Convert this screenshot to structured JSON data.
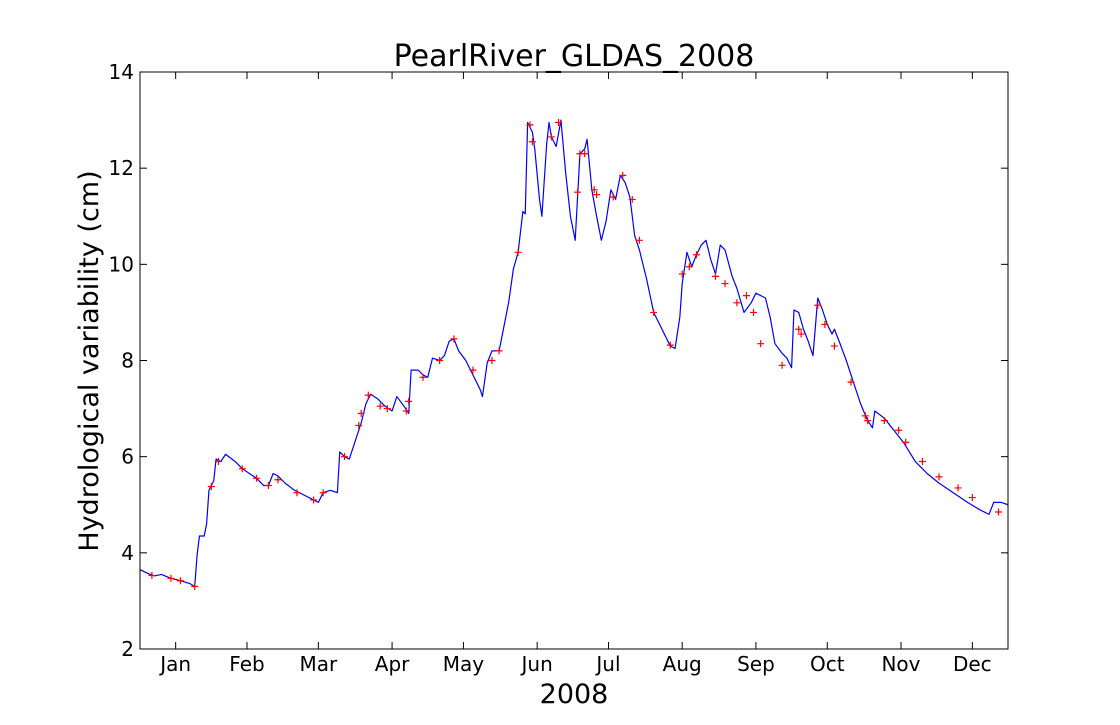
{
  "chart_data": {
    "type": "line",
    "title": "PearlRiver_GLDAS_2008",
    "xlabel": "2008",
    "ylabel": "Hydrological variability (cm)",
    "ylim": [
      2,
      14
    ],
    "xlim": [
      "2008-01-01",
      "2008-12-31"
    ],
    "yticks": [
      2,
      4,
      6,
      8,
      10,
      12,
      14
    ],
    "xtick_labels": [
      "Jan",
      "Feb",
      "Mar",
      "Apr",
      "May",
      "Jun",
      "Jul",
      "Aug",
      "Sep",
      "Oct",
      "Nov",
      "Dec"
    ],
    "xtick_dates": [
      "2008-01-16",
      "2008-02-15",
      "2008-03-16",
      "2008-04-16",
      "2008-05-16",
      "2008-06-16",
      "2008-07-16",
      "2008-08-16",
      "2008-09-16",
      "2008-10-16",
      "2008-11-16",
      "2008-12-16"
    ],
    "grid": false,
    "legend": false,
    "series": [
      {
        "color": "#0000ff",
        "style": "line",
        "points": [
          [
            "2008-01-01",
            3.65
          ],
          [
            "2008-01-04",
            3.58
          ],
          [
            "2008-01-07",
            3.52
          ],
          [
            "2008-01-10",
            3.55
          ],
          [
            "2008-01-14",
            3.47
          ],
          [
            "2008-01-18",
            3.42
          ],
          [
            "2008-01-22",
            3.36
          ],
          [
            "2008-01-24",
            3.3
          ],
          [
            "2008-01-25",
            3.95
          ],
          [
            "2008-01-26",
            4.35
          ],
          [
            "2008-01-28",
            4.35
          ],
          [
            "2008-01-29",
            4.6
          ],
          [
            "2008-01-30",
            5.3
          ],
          [
            "2008-02-01",
            5.5
          ],
          [
            "2008-02-02",
            5.95
          ],
          [
            "2008-02-04",
            5.9
          ],
          [
            "2008-02-06",
            6.05
          ],
          [
            "2008-02-10",
            5.9
          ],
          [
            "2008-02-13",
            5.75
          ],
          [
            "2008-02-16",
            5.65
          ],
          [
            "2008-02-19",
            5.55
          ],
          [
            "2008-02-22",
            5.4
          ],
          [
            "2008-02-24",
            5.4
          ],
          [
            "2008-02-26",
            5.65
          ],
          [
            "2008-02-28",
            5.6
          ],
          [
            "2008-03-02",
            5.45
          ],
          [
            "2008-03-06",
            5.3
          ],
          [
            "2008-03-10",
            5.2
          ],
          [
            "2008-03-14",
            5.1
          ],
          [
            "2008-03-16",
            5.05
          ],
          [
            "2008-03-18",
            5.25
          ],
          [
            "2008-03-21",
            5.3
          ],
          [
            "2008-03-24",
            5.25
          ],
          [
            "2008-03-25",
            6.1
          ],
          [
            "2008-03-27",
            6.0
          ],
          [
            "2008-03-29",
            5.95
          ],
          [
            "2008-03-31",
            6.25
          ],
          [
            "2008-04-03",
            6.7
          ],
          [
            "2008-04-05",
            7.1
          ],
          [
            "2008-04-07",
            7.3
          ],
          [
            "2008-04-10",
            7.2
          ],
          [
            "2008-04-13",
            7.05
          ],
          [
            "2008-04-16",
            6.95
          ],
          [
            "2008-04-18",
            7.25
          ],
          [
            "2008-04-21",
            7.05
          ],
          [
            "2008-04-23",
            6.9
          ],
          [
            "2008-04-24",
            7.8
          ],
          [
            "2008-04-27",
            7.8
          ],
          [
            "2008-04-29",
            7.7
          ],
          [
            "2008-05-01",
            7.65
          ],
          [
            "2008-05-03",
            8.05
          ],
          [
            "2008-05-06",
            8.0
          ],
          [
            "2008-05-08",
            8.1
          ],
          [
            "2008-05-10",
            8.4
          ],
          [
            "2008-05-12",
            8.45
          ],
          [
            "2008-05-14",
            8.2
          ],
          [
            "2008-05-17",
            8.0
          ],
          [
            "2008-05-20",
            7.7
          ],
          [
            "2008-05-23",
            7.4
          ],
          [
            "2008-05-24",
            7.25
          ],
          [
            "2008-05-26",
            7.95
          ],
          [
            "2008-05-28",
            8.2
          ],
          [
            "2008-05-31",
            8.2
          ],
          [
            "2008-06-02",
            8.7
          ],
          [
            "2008-06-04",
            9.2
          ],
          [
            "2008-06-06",
            9.9
          ],
          [
            "2008-06-08",
            10.25
          ],
          [
            "2008-06-10",
            11.1
          ],
          [
            "2008-06-11",
            11.05
          ],
          [
            "2008-06-12",
            12.95
          ],
          [
            "2008-06-14",
            12.75
          ],
          [
            "2008-06-15",
            12.4
          ],
          [
            "2008-06-17",
            11.35
          ],
          [
            "2008-06-18",
            11.0
          ],
          [
            "2008-06-20",
            12.5
          ],
          [
            "2008-06-21",
            12.95
          ],
          [
            "2008-06-22",
            12.65
          ],
          [
            "2008-06-24",
            12.45
          ],
          [
            "2008-06-26",
            13.0
          ],
          [
            "2008-06-28",
            11.9
          ],
          [
            "2008-06-30",
            11.0
          ],
          [
            "2008-07-02",
            10.5
          ],
          [
            "2008-07-04",
            12.3
          ],
          [
            "2008-07-06",
            12.4
          ],
          [
            "2008-07-07",
            12.6
          ],
          [
            "2008-07-09",
            11.55
          ],
          [
            "2008-07-11",
            11.0
          ],
          [
            "2008-07-13",
            10.5
          ],
          [
            "2008-07-15",
            10.9
          ],
          [
            "2008-07-17",
            11.55
          ],
          [
            "2008-07-19",
            11.35
          ],
          [
            "2008-07-21",
            11.85
          ],
          [
            "2008-07-23",
            11.7
          ],
          [
            "2008-07-25",
            11.4
          ],
          [
            "2008-07-27",
            10.6
          ],
          [
            "2008-07-29",
            10.3
          ],
          [
            "2008-08-01",
            9.7
          ],
          [
            "2008-08-04",
            9.0
          ],
          [
            "2008-08-08",
            8.6
          ],
          [
            "2008-08-11",
            8.3
          ],
          [
            "2008-08-13",
            8.25
          ],
          [
            "2008-08-15",
            8.9
          ],
          [
            "2008-08-16",
            9.6
          ],
          [
            "2008-08-18",
            10.25
          ],
          [
            "2008-08-20",
            9.95
          ],
          [
            "2008-08-22",
            10.2
          ],
          [
            "2008-08-24",
            10.4
          ],
          [
            "2008-08-26",
            10.5
          ],
          [
            "2008-08-28",
            10.1
          ],
          [
            "2008-08-30",
            9.8
          ],
          [
            "2008-09-01",
            10.4
          ],
          [
            "2008-09-03",
            10.3
          ],
          [
            "2008-09-06",
            9.75
          ],
          [
            "2008-09-08",
            9.5
          ],
          [
            "2008-09-11",
            9.0
          ],
          [
            "2008-09-14",
            9.2
          ],
          [
            "2008-09-16",
            9.4
          ],
          [
            "2008-09-18",
            9.35
          ],
          [
            "2008-09-20",
            9.3
          ],
          [
            "2008-09-22",
            8.9
          ],
          [
            "2008-09-24",
            8.35
          ],
          [
            "2008-09-27",
            8.15
          ],
          [
            "2008-09-29",
            8.05
          ],
          [
            "2008-10-01",
            7.85
          ],
          [
            "2008-10-02",
            9.05
          ],
          [
            "2008-10-04",
            9.0
          ],
          [
            "2008-10-06",
            8.65
          ],
          [
            "2008-10-08",
            8.4
          ],
          [
            "2008-10-10",
            8.1
          ],
          [
            "2008-10-12",
            9.3
          ],
          [
            "2008-10-14",
            9.05
          ],
          [
            "2008-10-16",
            8.75
          ],
          [
            "2008-10-18",
            8.55
          ],
          [
            "2008-10-19",
            8.65
          ],
          [
            "2008-10-21",
            8.4
          ],
          [
            "2008-10-24",
            8.0
          ],
          [
            "2008-10-27",
            7.55
          ],
          [
            "2008-10-30",
            7.1
          ],
          [
            "2008-11-02",
            6.75
          ],
          [
            "2008-11-04",
            6.6
          ],
          [
            "2008-11-05",
            6.95
          ],
          [
            "2008-11-09",
            6.8
          ],
          [
            "2008-11-13",
            6.55
          ],
          [
            "2008-11-17",
            6.3
          ],
          [
            "2008-11-22",
            5.9
          ],
          [
            "2008-11-27",
            5.65
          ],
          [
            "2008-12-02",
            5.45
          ],
          [
            "2008-12-08",
            5.25
          ],
          [
            "2008-12-14",
            5.05
          ],
          [
            "2008-12-19",
            4.9
          ],
          [
            "2008-12-23",
            4.8
          ],
          [
            "2008-12-25",
            5.05
          ],
          [
            "2008-12-28",
            5.05
          ],
          [
            "2008-12-31",
            5.0
          ]
        ]
      },
      {
        "color": "#ff0000",
        "style": "plus-markers",
        "points": [
          [
            "2008-01-06",
            3.53
          ],
          [
            "2008-01-14",
            3.47
          ],
          [
            "2008-01-18",
            3.42
          ],
          [
            "2008-01-24",
            3.3
          ],
          [
            "2008-01-31",
            5.38
          ],
          [
            "2008-02-03",
            5.9
          ],
          [
            "2008-02-13",
            5.75
          ],
          [
            "2008-02-19",
            5.55
          ],
          [
            "2008-02-24",
            5.4
          ],
          [
            "2008-02-28",
            5.52
          ],
          [
            "2008-03-07",
            5.25
          ],
          [
            "2008-03-14",
            5.1
          ],
          [
            "2008-03-18",
            5.25
          ],
          [
            "2008-03-27",
            6.0
          ],
          [
            "2008-04-02",
            6.65
          ],
          [
            "2008-04-03",
            6.9
          ],
          [
            "2008-04-06",
            7.28
          ],
          [
            "2008-04-11",
            7.05
          ],
          [
            "2008-04-14",
            7.0
          ],
          [
            "2008-04-23",
            7.15
          ],
          [
            "2008-04-22",
            6.95
          ],
          [
            "2008-04-29",
            7.65
          ],
          [
            "2008-05-06",
            8.0
          ],
          [
            "2008-05-12",
            8.45
          ],
          [
            "2008-05-20",
            7.8
          ],
          [
            "2008-05-28",
            8.0
          ],
          [
            "2008-05-31",
            8.2
          ],
          [
            "2008-06-08",
            10.25
          ],
          [
            "2008-06-13",
            12.9
          ],
          [
            "2008-06-14",
            12.55
          ],
          [
            "2008-06-22",
            12.65
          ],
          [
            "2008-06-25",
            12.95
          ],
          [
            "2008-07-03",
            11.5
          ],
          [
            "2008-07-04",
            12.3
          ],
          [
            "2008-07-06",
            12.3
          ],
          [
            "2008-07-10",
            11.55
          ],
          [
            "2008-07-11",
            11.45
          ],
          [
            "2008-07-18",
            11.4
          ],
          [
            "2008-07-22",
            11.85
          ],
          [
            "2008-07-26",
            11.35
          ],
          [
            "2008-07-29",
            10.5
          ],
          [
            "2008-08-04",
            9.0
          ],
          [
            "2008-08-11",
            8.32
          ],
          [
            "2008-08-16",
            9.8
          ],
          [
            "2008-08-19",
            9.95
          ],
          [
            "2008-08-22",
            10.2
          ],
          [
            "2008-08-30",
            9.75
          ],
          [
            "2008-09-03",
            9.6
          ],
          [
            "2008-09-08",
            9.2
          ],
          [
            "2008-09-12",
            9.35
          ],
          [
            "2008-09-15",
            9.0
          ],
          [
            "2008-09-18",
            8.35
          ],
          [
            "2008-09-27",
            7.9
          ],
          [
            "2008-10-04",
            8.65
          ],
          [
            "2008-10-05",
            8.55
          ],
          [
            "2008-10-12",
            9.15
          ],
          [
            "2008-10-15",
            8.75
          ],
          [
            "2008-10-19",
            8.3
          ],
          [
            "2008-10-26",
            7.55
          ],
          [
            "2008-11-01",
            6.85
          ],
          [
            "2008-11-02",
            6.75
          ],
          [
            "2008-11-09",
            6.75
          ],
          [
            "2008-11-15",
            6.55
          ],
          [
            "2008-11-18",
            6.3
          ],
          [
            "2008-11-25",
            5.9
          ],
          [
            "2008-12-02",
            5.58
          ],
          [
            "2008-12-10",
            5.35
          ],
          [
            "2008-12-16",
            5.15
          ],
          [
            "2008-12-27",
            4.85
          ]
        ]
      }
    ]
  }
}
